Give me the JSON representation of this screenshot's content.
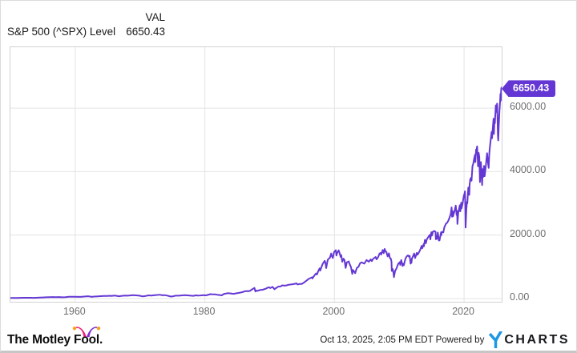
{
  "header": {
    "title": "S&P 500 (^SPX) Level",
    "val_label": "VAL",
    "val_value": "6650.43"
  },
  "chart_data": {
    "type": "line",
    "title": "S&P 500 (^SPX) Level",
    "series_name": "S&P 500 Index Level",
    "xlim": [
      1950.0,
      2025.8
    ],
    "ylim": [
      0,
      7920
    ],
    "grid": true,
    "line_color": "#6437d4",
    "flag_bg": "#6437d4",
    "flag_text_color": "#ffffff",
    "last_value_label": "6650.43",
    "x_ticks": [
      {
        "value": 1960,
        "label": "1960"
      },
      {
        "value": 1980,
        "label": "1980"
      },
      {
        "value": 2000,
        "label": "2000"
      },
      {
        "value": 2020,
        "label": "2020"
      }
    ],
    "y_ticks": [
      {
        "value": 6000,
        "label": "6000.00"
      },
      {
        "value": 4000,
        "label": "4000.00"
      },
      {
        "value": 2000,
        "label": "2000.00"
      },
      {
        "value": 0,
        "label": "0.00"
      }
    ],
    "points": [
      [
        1950.0,
        17
      ],
      [
        1950.5,
        18
      ],
      [
        1951,
        21
      ],
      [
        1951.5,
        22
      ],
      [
        1952,
        24
      ],
      [
        1952.5,
        25
      ],
      [
        1953,
        26
      ],
      [
        1953.6,
        23
      ],
      [
        1954,
        26
      ],
      [
        1954.5,
        30
      ],
      [
        1955,
        36
      ],
      [
        1955.5,
        41
      ],
      [
        1956,
        44
      ],
      [
        1956.6,
        47
      ],
      [
        1957,
        45
      ],
      [
        1957.6,
        48
      ],
      [
        1957.9,
        40
      ],
      [
        1958,
        41
      ],
      [
        1958.5,
        45
      ],
      [
        1959,
        55
      ],
      [
        1959.6,
        59
      ],
      [
        1960,
        58
      ],
      [
        1960.8,
        53
      ],
      [
        1961,
        59
      ],
      [
        1961.9,
        72
      ],
      [
        1962.2,
        69
      ],
      [
        1962.5,
        52
      ],
      [
        1962.9,
        63
      ],
      [
        1963.5,
        70
      ],
      [
        1963.9,
        75
      ],
      [
        1964.5,
        81
      ],
      [
        1964.9,
        84
      ],
      [
        1965.4,
        88
      ],
      [
        1965.6,
        84
      ],
      [
        1965.9,
        92
      ],
      [
        1966.1,
        94
      ],
      [
        1966.75,
        73
      ],
      [
        1967.2,
        87
      ],
      [
        1967.7,
        95
      ],
      [
        1968.1,
        90
      ],
      [
        1968.9,
        108
      ],
      [
        1969.4,
        102
      ],
      [
        1969.9,
        92
      ],
      [
        1970.4,
        69
      ],
      [
        1970.9,
        83
      ],
      [
        1971.3,
        100
      ],
      [
        1971.8,
        94
      ],
      [
        1971.95,
        102
      ],
      [
        1972.9,
        118
      ],
      [
        1973.0,
        120
      ],
      [
        1973.5,
        104
      ],
      [
        1973.8,
        108
      ],
      [
        1974.2,
        93
      ],
      [
        1974.75,
        62
      ],
      [
        1975.1,
        72
      ],
      [
        1975.5,
        90
      ],
      [
        1976.0,
        90
      ],
      [
        1976.7,
        104
      ],
      [
        1976.95,
        107
      ],
      [
        1977.5,
        99
      ],
      [
        1978.2,
        87
      ],
      [
        1978.7,
        103
      ],
      [
        1978.8,
        94
      ],
      [
        1979.3,
        99
      ],
      [
        1979.75,
        109
      ],
      [
        1980.2,
        102
      ],
      [
        1980.9,
        140
      ],
      [
        1981.0,
        135
      ],
      [
        1981.6,
        130
      ],
      [
        1981.9,
        122
      ],
      [
        1982.3,
        111
      ],
      [
        1982.6,
        102
      ],
      [
        1982.9,
        140
      ],
      [
        1983.5,
        168
      ],
      [
        1983.9,
        165
      ],
      [
        1984.4,
        150
      ],
      [
        1984.9,
        167
      ],
      [
        1985.5,
        190
      ],
      [
        1985.95,
        211
      ],
      [
        1986.2,
        235
      ],
      [
        1986.7,
        236
      ],
      [
        1986.75,
        231
      ],
      [
        1986.95,
        242
      ],
      [
        1987.3,
        290
      ],
      [
        1987.65,
        336
      ],
      [
        1987.8,
        225
      ],
      [
        1987.9,
        251
      ],
      [
        1988.1,
        243
      ],
      [
        1988.5,
        270
      ],
      [
        1988.9,
        278
      ],
      [
        1989.4,
        310
      ],
      [
        1989.75,
        350
      ],
      [
        1989.95,
        353
      ],
      [
        1990.1,
        330
      ],
      [
        1990.45,
        368
      ],
      [
        1990.75,
        295
      ],
      [
        1990.95,
        330
      ],
      [
        1991.1,
        343
      ],
      [
        1991.3,
        375
      ],
      [
        1991.7,
        385
      ],
      [
        1991.95,
        417
      ],
      [
        1992.3,
        405
      ],
      [
        1992.6,
        415
      ],
      [
        1992.95,
        436
      ],
      [
        1993.4,
        448
      ],
      [
        1993.95,
        466
      ],
      [
        1994.1,
        482
      ],
      [
        1994.3,
        445
      ],
      [
        1994.6,
        460
      ],
      [
        1994.95,
        459
      ],
      [
        1995.4,
        520
      ],
      [
        1995.9,
        600
      ],
      [
        1995.98,
        616
      ],
      [
        1996.3,
        645
      ],
      [
        1996.55,
        670
      ],
      [
        1996.6,
        635
      ],
      [
        1996.95,
        741
      ],
      [
        1997.15,
        790
      ],
      [
        1997.3,
        760
      ],
      [
        1997.55,
        885
      ],
      [
        1997.7,
        950
      ],
      [
        1997.8,
        880
      ],
      [
        1997.95,
        970
      ],
      [
        1998.2,
        1100
      ],
      [
        1998.5,
        1190
      ],
      [
        1998.65,
        1090
      ],
      [
        1998.72,
        960
      ],
      [
        1998.9,
        1160
      ],
      [
        1998.98,
        1229
      ],
      [
        1999.3,
        1290
      ],
      [
        1999.5,
        1420
      ],
      [
        1999.55,
        1360
      ],
      [
        1999.75,
        1280
      ],
      [
        1999.95,
        1469
      ],
      [
        2000.2,
        1527
      ],
      [
        2000.3,
        1356
      ],
      [
        2000.45,
        1450
      ],
      [
        2000.65,
        1520
      ],
      [
        2000.8,
        1430
      ],
      [
        2000.95,
        1320
      ],
      [
        2001.05,
        1370
      ],
      [
        2001.2,
        1160
      ],
      [
        2001.4,
        1255
      ],
      [
        2001.55,
        1210
      ],
      [
        2001.72,
        966
      ],
      [
        2001.9,
        1140
      ],
      [
        2001.98,
        1148
      ],
      [
        2002.2,
        1170
      ],
      [
        2002.3,
        1106
      ],
      [
        2002.55,
        990
      ],
      [
        2002.75,
        776
      ],
      [
        2002.85,
        900
      ],
      [
        2002.95,
        880
      ],
      [
        2003.2,
        800
      ],
      [
        2003.45,
        965
      ],
      [
        2003.7,
        1000
      ],
      [
        2003.95,
        1112
      ],
      [
        2004.2,
        1140
      ],
      [
        2004.6,
        1100
      ],
      [
        2004.95,
        1212
      ],
      [
        2005.3,
        1160
      ],
      [
        2005.6,
        1235
      ],
      [
        2005.75,
        1180
      ],
      [
        2005.95,
        1248
      ],
      [
        2006.35,
        1310
      ],
      [
        2006.5,
        1235
      ],
      [
        2006.75,
        1310
      ],
      [
        2006.95,
        1418
      ],
      [
        2007.15,
        1440
      ],
      [
        2007.2,
        1385
      ],
      [
        2007.45,
        1530
      ],
      [
        2007.6,
        1430
      ],
      [
        2007.75,
        1565
      ],
      [
        2007.9,
        1480
      ],
      [
        2008.0,
        1470
      ],
      [
        2008.2,
        1330
      ],
      [
        2008.4,
        1425
      ],
      [
        2008.55,
        1280
      ],
      [
        2008.7,
        1255
      ],
      [
        2008.8,
        1165
      ],
      [
        2008.85,
        870
      ],
      [
        2008.95,
        900
      ],
      [
        2009.0,
        930
      ],
      [
        2009.1,
        825
      ],
      [
        2009.18,
        676
      ],
      [
        2009.35,
        870
      ],
      [
        2009.5,
        920
      ],
      [
        2009.7,
        1020
      ],
      [
        2009.85,
        1100
      ],
      [
        2009.95,
        1115
      ],
      [
        2010.1,
        1150
      ],
      [
        2010.15,
        1060
      ],
      [
        2010.3,
        1217
      ],
      [
        2010.5,
        1030
      ],
      [
        2010.65,
        1100
      ],
      [
        2010.7,
        1050
      ],
      [
        2010.95,
        1257
      ],
      [
        2011.15,
        1330
      ],
      [
        2011.35,
        1363
      ],
      [
        2011.5,
        1320
      ],
      [
        2011.6,
        1345
      ],
      [
        2011.75,
        1099
      ],
      [
        2011.83,
        1220
      ],
      [
        2011.88,
        1130
      ],
      [
        2011.95,
        1258
      ],
      [
        2012.2,
        1370
      ],
      [
        2012.3,
        1420
      ],
      [
        2012.45,
        1280
      ],
      [
        2012.7,
        1440
      ],
      [
        2012.8,
        1380
      ],
      [
        2012.95,
        1426
      ],
      [
        2013.2,
        1520
      ],
      [
        2013.45,
        1660
      ],
      [
        2013.55,
        1585
      ],
      [
        2013.75,
        1710
      ],
      [
        2013.8,
        1650
      ],
      [
        2013.95,
        1848
      ],
      [
        2014.1,
        1742
      ],
      [
        2014.25,
        1870
      ],
      [
        2014.55,
        1960
      ],
      [
        2014.75,
        2010
      ],
      [
        2014.8,
        1865
      ],
      [
        2014.95,
        2090
      ],
      [
        2015.05,
        1990
      ],
      [
        2015.2,
        2110
      ],
      [
        2015.4,
        2130
      ],
      [
        2015.6,
        2100
      ],
      [
        2015.65,
        1870
      ],
      [
        2015.75,
        1950
      ],
      [
        2015.8,
        1880
      ],
      [
        2015.95,
        2080
      ],
      [
        2016.1,
        1830
      ],
      [
        2016.15,
        1865
      ],
      [
        2016.2,
        1830
      ],
      [
        2016.45,
        2090
      ],
      [
        2016.5,
        2000
      ],
      [
        2016.55,
        2100
      ],
      [
        2016.8,
        2085
      ],
      [
        2016.95,
        2239
      ],
      [
        2017.2,
        2360
      ],
      [
        2017.4,
        2390
      ],
      [
        2017.6,
        2470
      ],
      [
        2017.8,
        2575
      ],
      [
        2017.95,
        2674
      ],
      [
        2018.07,
        2873
      ],
      [
        2018.15,
        2580
      ],
      [
        2018.25,
        2750
      ],
      [
        2018.3,
        2590
      ],
      [
        2018.55,
        2780
      ],
      [
        2018.72,
        2930
      ],
      [
        2018.85,
        2630
      ],
      [
        2018.92,
        2760
      ],
      [
        2018.97,
        2351
      ],
      [
        2019.1,
        2700
      ],
      [
        2019.35,
        2940
      ],
      [
        2019.42,
        2750
      ],
      [
        2019.55,
        3020
      ],
      [
        2019.6,
        2840
      ],
      [
        2019.75,
        2980
      ],
      [
        2019.95,
        3231
      ],
      [
        2020.1,
        3330
      ],
      [
        2020.14,
        3380
      ],
      [
        2020.18,
        2950
      ],
      [
        2020.23,
        2237
      ],
      [
        2020.35,
        2800
      ],
      [
        2020.45,
        3050
      ],
      [
        2020.5,
        3000
      ],
      [
        2020.65,
        3500
      ],
      [
        2020.72,
        3270
      ],
      [
        2020.8,
        3270
      ],
      [
        2020.85,
        3585
      ],
      [
        2020.95,
        3756
      ],
      [
        2021.1,
        3810
      ],
      [
        2021.15,
        3715
      ],
      [
        2021.3,
        4180
      ],
      [
        2021.4,
        4230
      ],
      [
        2021.55,
        4400
      ],
      [
        2021.68,
        4530
      ],
      [
        2021.73,
        4300
      ],
      [
        2021.85,
        4700
      ],
      [
        2021.9,
        4570
      ],
      [
        2021.98,
        4766
      ],
      [
        2022.02,
        4796
      ],
      [
        2022.15,
        4170
      ],
      [
        2022.25,
        4590
      ],
      [
        2022.35,
        4460
      ],
      [
        2022.45,
        3670
      ],
      [
        2022.6,
        4300
      ],
      [
        2022.65,
        4130
      ],
      [
        2022.78,
        3577
      ],
      [
        2022.88,
        4080
      ],
      [
        2022.98,
        3840
      ],
      [
        2023.08,
        4180
      ],
      [
        2023.18,
        3860
      ],
      [
        2023.35,
        4170
      ],
      [
        2023.55,
        4580
      ],
      [
        2023.62,
        4400
      ],
      [
        2023.8,
        4120
      ],
      [
        2023.88,
        4550
      ],
      [
        2023.98,
        4770
      ],
      [
        2024.1,
        5000
      ],
      [
        2024.25,
        5254
      ],
      [
        2024.32,
        5050
      ],
      [
        2024.45,
        5430
      ],
      [
        2024.55,
        5667
      ],
      [
        2024.6,
        5186
      ],
      [
        2024.7,
        5650
      ],
      [
        2024.75,
        5520
      ],
      [
        2024.9,
        6090
      ],
      [
        2024.98,
        5882
      ],
      [
        2025.05,
        6040
      ],
      [
        2025.1,
        6144
      ],
      [
        2025.17,
        5600
      ],
      [
        2025.22,
        5150
      ],
      [
        2025.27,
        4983
      ],
      [
        2025.35,
        5460
      ],
      [
        2025.45,
        5900
      ],
      [
        2025.55,
        6200
      ],
      [
        2025.62,
        6450
      ],
      [
        2025.66,
        6240
      ],
      [
        2025.72,
        6600
      ],
      [
        2025.78,
        6650.43
      ]
    ]
  },
  "footer": {
    "brand": "The Motley Fool.",
    "timestamp": "Oct 13, 2025, 2:05 PM EDT",
    "powered_by": "Powered by",
    "ycharts_text": "CHARTS",
    "colors": {
      "hat_left": "#ec1e79",
      "hat_right": "#7d2bd6",
      "hat_bell": "#f9a11b",
      "ycharts_blue": "#1e97e4"
    }
  }
}
